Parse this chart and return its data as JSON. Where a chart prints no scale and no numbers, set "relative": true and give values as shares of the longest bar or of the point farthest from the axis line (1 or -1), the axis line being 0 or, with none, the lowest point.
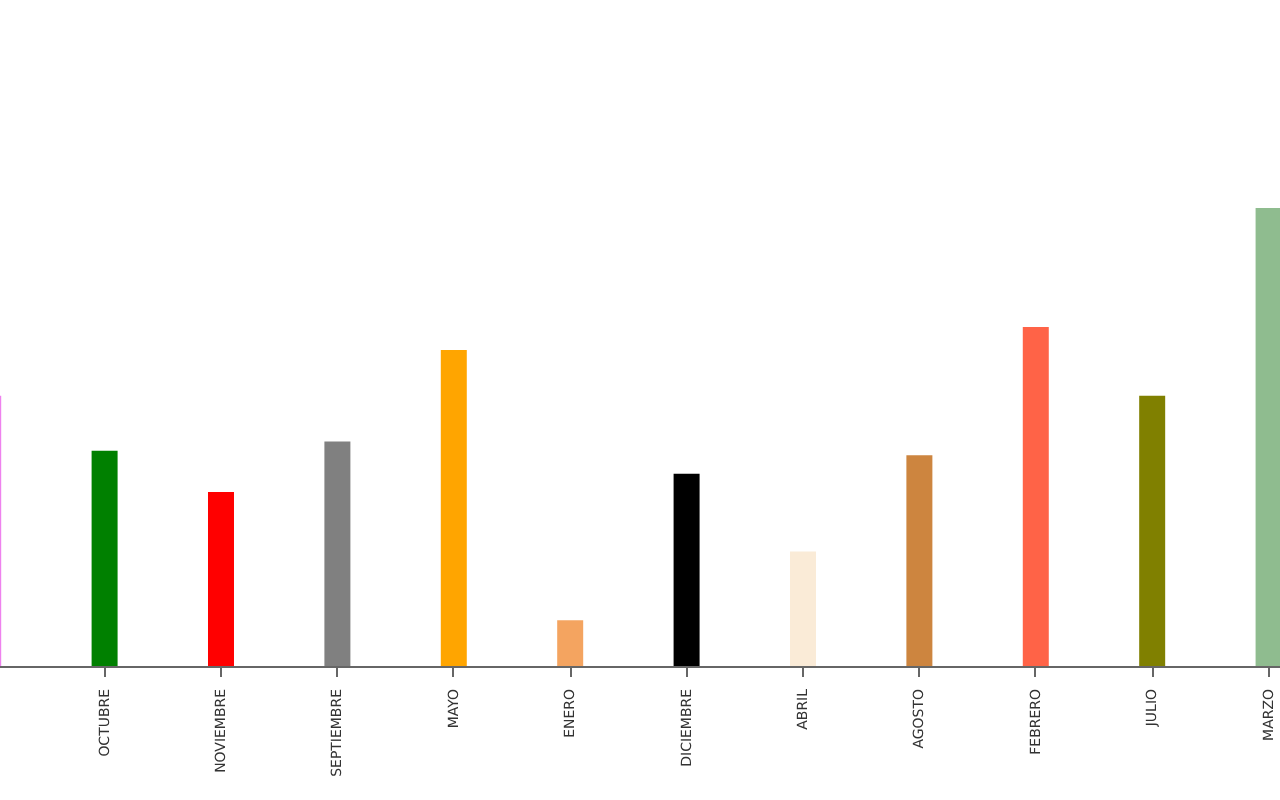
{
  "chart_data": {
    "type": "bar",
    "relative": true,
    "categories": [
      null,
      "OCTUBRE",
      "NOVIEMBRE",
      "SEPTIEMBRE",
      "MAYO",
      "ENERO",
      "DICIEMBRE",
      "ABRIL",
      "AGOSTO",
      "FEBRERO",
      "JULIO",
      "MARZO"
    ],
    "values": [
      0.59,
      0.47,
      0.38,
      0.49,
      0.69,
      0.1,
      0.42,
      0.25,
      0.46,
      0.74,
      0.59,
      1
    ],
    "colors": [
      "#ee82ee",
      "#008000",
      "#ff0000",
      "#808080",
      "#ffa500",
      "#f4a460",
      "#000000",
      "#faebd7",
      "#cd853f",
      "#ff6347",
      "#808000",
      "#8fbc8f"
    ]
  }
}
